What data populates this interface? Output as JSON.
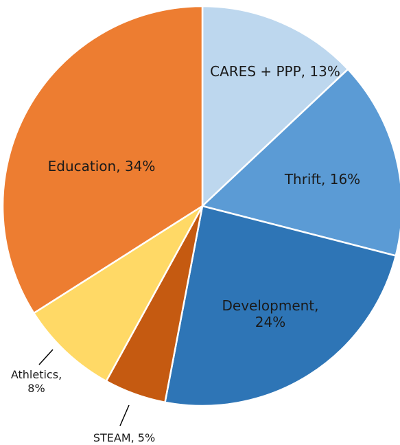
{
  "chart_data": {
    "type": "pie",
    "slices": [
      {
        "label": "CARES + PPP",
        "value": 13,
        "display": "CARES + PPP, 13%",
        "color": "#BDD7EE"
      },
      {
        "label": "Thrift",
        "value": 16,
        "display": "Thrift, 16%",
        "color": "#5B9BD5"
      },
      {
        "label": "Development",
        "value": 24,
        "display": [
          "Development,",
          "24%"
        ],
        "color": "#2E75B6"
      },
      {
        "label": "STEAM",
        "value": 5,
        "display": "STEAM, 5%",
        "color": "#C55A11"
      },
      {
        "label": "Athletics",
        "value": 8,
        "display": [
          "Athletics,",
          "8%"
        ],
        "color": "#FFD966"
      },
      {
        "label": "Education",
        "value": 34,
        "display": "Education, 34%",
        "color": "#ED7D31"
      }
    ],
    "start_angle": "12 o'clock",
    "direction": "clockwise",
    "legend": "none"
  }
}
